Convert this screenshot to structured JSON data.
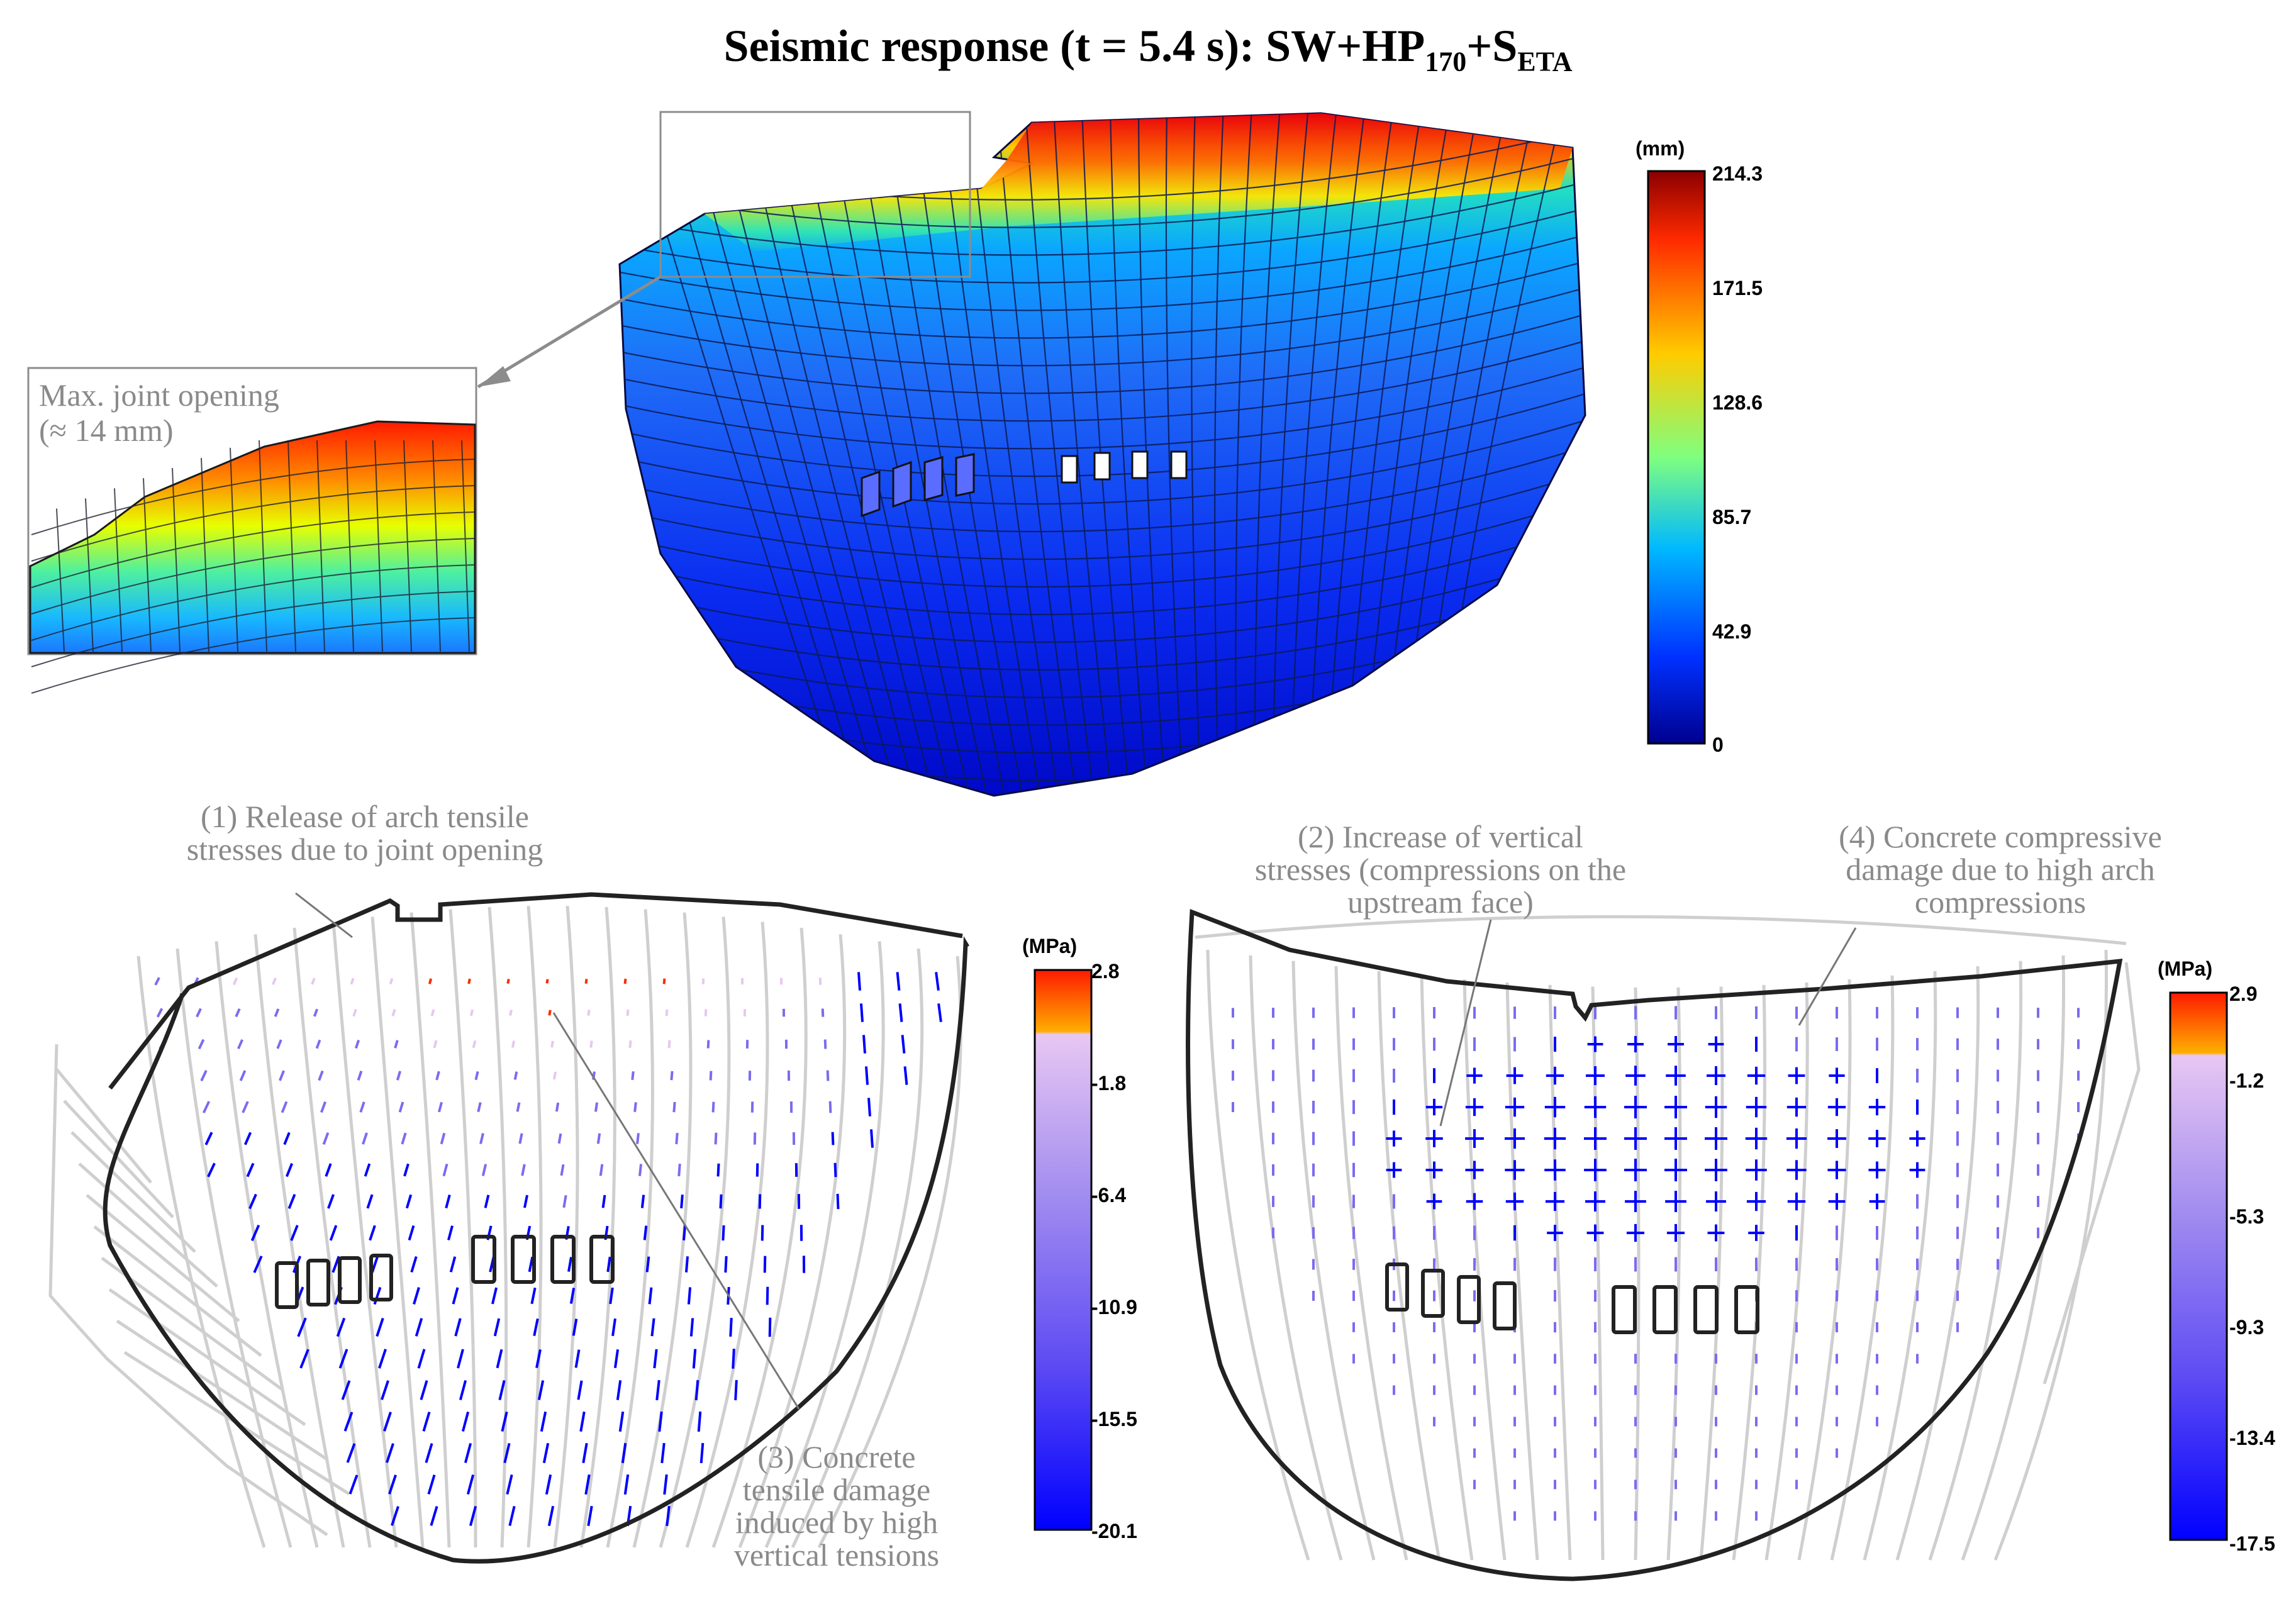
{
  "title": {
    "main": "Seismic response (t = 5.4 s): SW+HP",
    "sub1": "170",
    "mid": "+S",
    "sub2": "ETA"
  },
  "displacement_plot": {
    "zoom_label_line1": "Max. joint opening",
    "zoom_label_line2": "(≈ 14 mm)",
    "colorbar": {
      "unit": "(mm)",
      "ticks": [
        "214.3",
        "171.5",
        "128.6",
        "85.7",
        "42.9",
        "0"
      ],
      "colors": [
        "#8b0000",
        "#ff2a00",
        "#ffcc00",
        "#7fff7f",
        "#00b8ff",
        "#0030ff",
        "#00008f"
      ]
    }
  },
  "stress_plot_downstream": {
    "annotation_1_line1": "(1) Release of arch tensile",
    "annotation_1_line2": "stresses due to joint opening",
    "annotation_3_line1": "(3) Concrete",
    "annotation_3_line2": "tensile damage",
    "annotation_3_line3": "induced by high",
    "annotation_3_line4": "vertical tensions",
    "colorbar": {
      "unit": "(MPa)",
      "ticks": [
        "2.8",
        "-1.8",
        "-6.4",
        "-10.9",
        "-15.5",
        "-20.1"
      ]
    }
  },
  "stress_plot_upstream": {
    "annotation_2_line1": "(2) Increase of vertical",
    "annotation_2_line2": "stresses (compressions on the",
    "annotation_2_line3": "upstream face)",
    "annotation_4_line1": "(4) Concrete compressive",
    "annotation_4_line2": "damage due to high arch",
    "annotation_4_line3": "compressions",
    "colorbar": {
      "unit": "(MPa)",
      "ticks": [
        "2.9",
        "-1.2",
        "-5.3",
        "-9.3",
        "-13.4",
        "-17.5"
      ]
    }
  },
  "colors": {
    "stress_tension_top": "#ff2a00",
    "stress_tension_mid": "#ffaa00",
    "stress_light": "#e6c8f0",
    "stress_mid": "#7a6cf0",
    "stress_compression": "#0000ff",
    "mesh_grey": "#cccccc",
    "outline": "#1a1a1a"
  }
}
